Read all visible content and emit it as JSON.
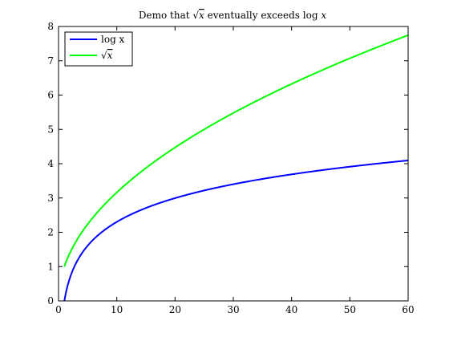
{
  "chart_data": {
    "type": "line",
    "title": "Demo that √x eventually exceeds log x",
    "title_parts": {
      "prefix": "Demo that ",
      "sqrt_var": "x",
      "middle": " eventually exceeds log ",
      "log_var": "x"
    },
    "xlabel": "",
    "ylabel": "",
    "xlim": [
      0,
      60
    ],
    "ylim": [
      0,
      8
    ],
    "xticks": [
      0,
      10,
      20,
      30,
      40,
      50,
      60
    ],
    "yticks": [
      0,
      1,
      2,
      3,
      4,
      5,
      6,
      7,
      8
    ],
    "grid": false,
    "legend_position": "top-left",
    "series": [
      {
        "name": "log x",
        "function": "log",
        "x_range": [
          1,
          60
        ],
        "color": "#0000ff"
      },
      {
        "name": "√x",
        "legend_var": "x",
        "function": "sqrt",
        "x_range": [
          1,
          60
        ],
        "color": "#00ff00"
      }
    ]
  }
}
